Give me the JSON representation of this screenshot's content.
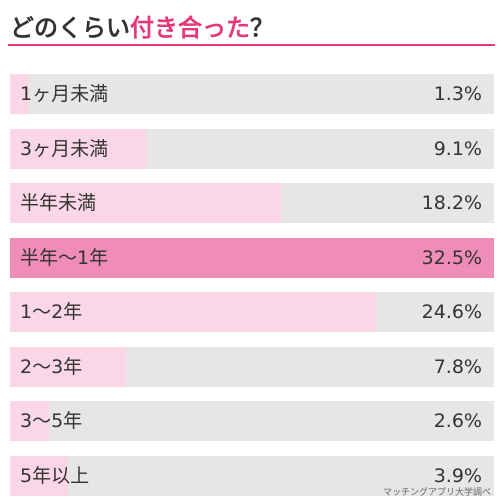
{
  "title": {
    "prefix": "どのくらい",
    "accent": "付き合った",
    "suffix": "？"
  },
  "source": "マッチングアプリ大学調べ",
  "colors": {
    "accent": "#e5387a",
    "track": "#e6e6e6",
    "fill": "#fad6e6",
    "highlight_fill": "#f08cb8"
  },
  "chart_data": {
    "type": "bar",
    "orientation": "horizontal",
    "categories": [
      "1ヶ月未満",
      "3ヶ月未満",
      "半年未満",
      "半年〜1年",
      "1〜2年",
      "2〜3年",
      "3〜5年",
      "5年以上"
    ],
    "values": [
      1.3,
      9.1,
      18.2,
      32.5,
      24.6,
      7.8,
      2.6,
      3.9
    ],
    "value_labels": [
      "1.3%",
      "9.1%",
      "18.2%",
      "32.5%",
      "24.6%",
      "7.8%",
      "2.6%",
      "3.9%"
    ],
    "highlight_index": 3,
    "xlim": [
      0,
      32.5
    ],
    "unit": "%"
  }
}
